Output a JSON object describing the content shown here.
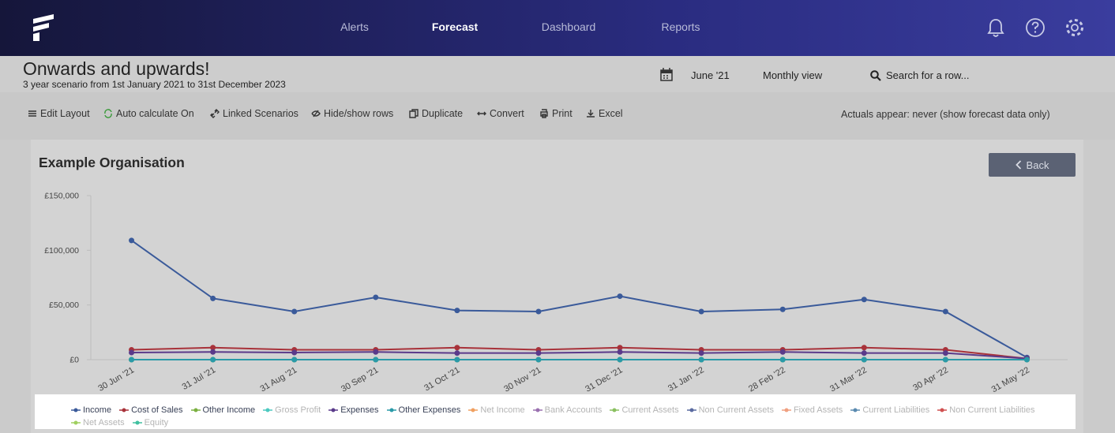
{
  "nav": {
    "links": [
      "Alerts",
      "Forecast",
      "Dashboard",
      "Reports"
    ],
    "active": 1
  },
  "header": {
    "title": "Onwards and upwards!",
    "subtitle": "3 year scenario from 1st January 2021 to 31st December 2023",
    "date": "June '21",
    "view": "Monthly view",
    "search": "Search for a row..."
  },
  "toolbar": {
    "buttons": [
      "Edit Layout",
      "Auto calculate On",
      "Linked Scenarios",
      "Hide/show rows",
      "Duplicate",
      "Convert",
      "Print",
      "Excel"
    ],
    "actuals": "Actuals appear: never (show forecast data only)"
  },
  "card": {
    "title": "Example Organisation",
    "back": "Back"
  },
  "chart_data": {
    "type": "line",
    "categories": [
      "30 Jun '21",
      "31 Jul '21",
      "31 Aug '21",
      "30 Sep '21",
      "31 Oct '21",
      "30 Nov '21",
      "31 Dec '21",
      "31 Jan '22",
      "28 Feb '22",
      "31 Mar '22",
      "30 Apr '22",
      "31 May '22"
    ],
    "ylim": [
      0,
      150000
    ],
    "yticks": [
      {
        "value": 0,
        "label": "£0"
      },
      {
        "value": 50000,
        "label": "£50,000"
      },
      {
        "value": 100000,
        "label": "£100,000"
      },
      {
        "value": 150000,
        "label": "£150,000"
      }
    ],
    "series": [
      {
        "name": "Income",
        "color": "#3a5a9a",
        "visible": true,
        "values": [
          109000,
          56000,
          44000,
          57000,
          45000,
          44000,
          58000,
          44000,
          46000,
          55000,
          44000,
          2000
        ]
      },
      {
        "name": "Cost of Sales",
        "color": "#a8323a",
        "visible": true,
        "values": [
          9000,
          11000,
          9000,
          9000,
          11000,
          9000,
          11000,
          9000,
          9000,
          11000,
          9000,
          1000
        ]
      },
      {
        "name": "Other Income",
        "color": "#7ab040",
        "visible": true,
        "values": [
          0,
          0,
          0,
          0,
          0,
          0,
          0,
          0,
          0,
          0,
          0,
          0
        ]
      },
      {
        "name": "Gross Profit",
        "color": "#4cc9c0",
        "visible": false
      },
      {
        "name": "Expenses",
        "color": "#5a3a8a",
        "visible": true,
        "values": [
          6500,
          7000,
          6500,
          7000,
          6000,
          6000,
          7000,
          6000,
          7000,
          6000,
          6000,
          1000
        ]
      },
      {
        "name": "Other Expenses",
        "color": "#2a9aa8",
        "visible": true,
        "values": [
          0,
          0,
          0,
          0,
          0,
          0,
          0,
          0,
          0,
          0,
          0,
          0
        ]
      },
      {
        "name": "Net Income",
        "color": "#f0a060",
        "visible": false
      },
      {
        "name": "Bank Accounts",
        "color": "#9a70b0",
        "visible": false
      },
      {
        "name": "Current Assets",
        "color": "#8ac060",
        "visible": false
      },
      {
        "name": "Non Current Assets",
        "color": "#5a6aa0",
        "visible": false
      },
      {
        "name": "Fixed Assets",
        "color": "#f0a080",
        "visible": false
      },
      {
        "name": "Current Liabilities",
        "color": "#5a8ab0",
        "visible": false
      },
      {
        "name": "Non Current Liabilities",
        "color": "#d05050",
        "visible": false
      },
      {
        "name": "Net Assets",
        "color": "#a0d060",
        "visible": false
      },
      {
        "name": "Equity",
        "color": "#40c0a0",
        "visible": false
      }
    ]
  }
}
